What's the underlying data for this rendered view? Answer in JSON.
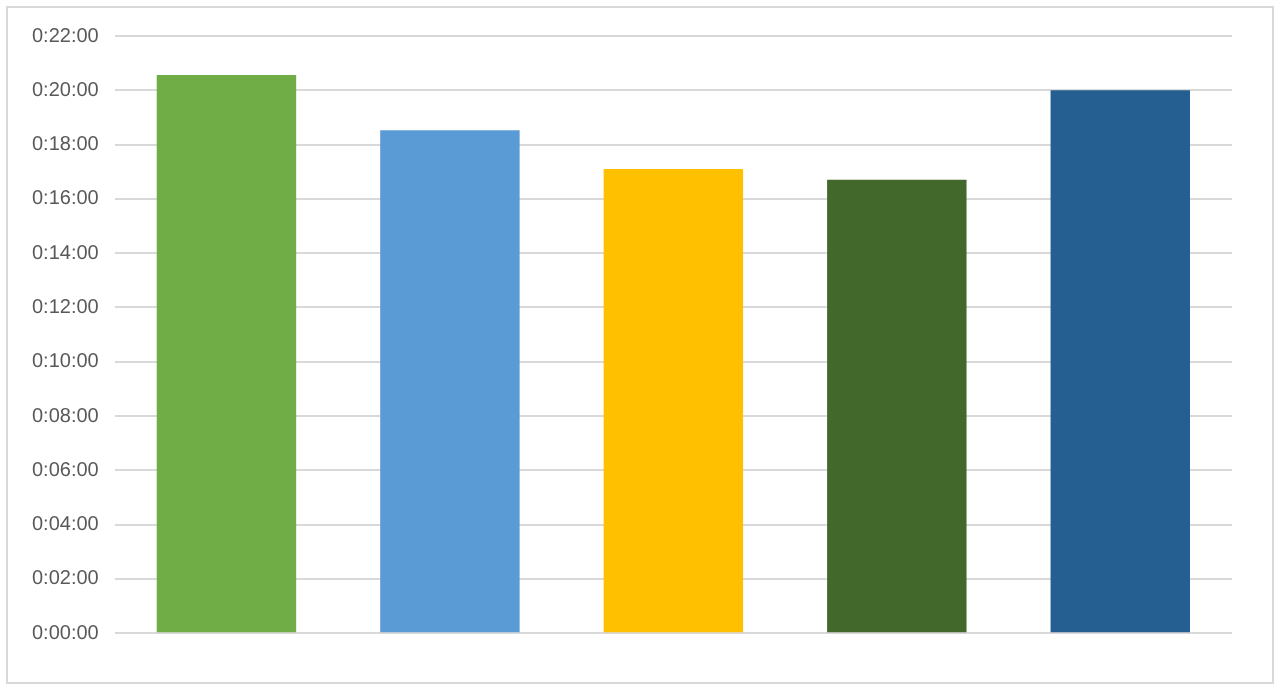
{
  "chart_data": {
    "type": "bar",
    "categories": [
      null,
      null,
      null,
      null,
      null
    ],
    "values": [
      20.56,
      18.53,
      17.1,
      16.7,
      20.0
    ],
    "colors": [
      "#70ad47",
      "#5b9bd5",
      "#ffc000",
      "#43682b",
      "#255e91"
    ],
    "ylim": [
      0,
      22
    ],
    "yticks": [
      {
        "value": 0,
        "label": "0:00:00"
      },
      {
        "value": 2,
        "label": "0:02:00"
      },
      {
        "value": 4,
        "label": "0:04:00"
      },
      {
        "value": 6,
        "label": "0:06:00"
      },
      {
        "value": 8,
        "label": "0:08:00"
      },
      {
        "value": 10,
        "label": "0:10:00"
      },
      {
        "value": 12,
        "label": "0:12:00"
      },
      {
        "value": 14,
        "label": "0:14:00"
      },
      {
        "value": 16,
        "label": "0:16:00"
      },
      {
        "value": 18,
        "label": "0:18:00"
      },
      {
        "value": 20,
        "label": "0:20:00"
      },
      {
        "value": 22,
        "label": "0:22:00"
      }
    ],
    "grid": "y",
    "legend": false
  }
}
